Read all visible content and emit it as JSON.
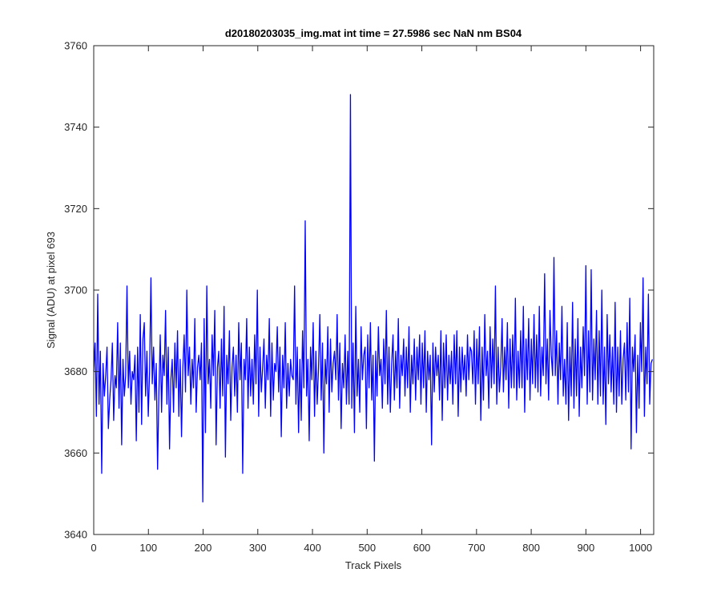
{
  "chart_data": {
    "type": "line",
    "title": "d20180203035_img.mat int time = 27.5986 sec  NaN nm BS04",
    "xlabel": "Track Pixels",
    "ylabel": "Signal (ADU) at pixel 693",
    "xlim": [
      0,
      1024
    ],
    "ylim": [
      3640,
      3760
    ],
    "xticks": [
      0,
      100,
      200,
      300,
      400,
      500,
      600,
      700,
      800,
      900,
      1000
    ],
    "yticks": [
      3640,
      3660,
      3680,
      3700,
      3720,
      3740,
      3760
    ],
    "xtick_labels": [
      "0",
      "100",
      "200",
      "300",
      "400",
      "500",
      "600",
      "700",
      "800",
      "900",
      "1000"
    ],
    "ytick_labels": [
      "3640",
      "3660",
      "3680",
      "3700",
      "3720",
      "3740",
      "3760"
    ],
    "grid": false,
    "legend": "none",
    "line_color": "#0000ff",
    "series": [
      {
        "values": [
          3680,
          3687,
          3669,
          3699,
          3672,
          3685,
          3655,
          3682,
          3674,
          3679,
          3686,
          3666,
          3673,
          3678,
          3687,
          3668,
          3679,
          3676,
          3692,
          3671,
          3687,
          3662,
          3683,
          3674,
          3679,
          3701,
          3676,
          3685,
          3672,
          3680,
          3678,
          3684,
          3663,
          3686,
          3670,
          3694,
          3667,
          3688,
          3692,
          3674,
          3685,
          3669,
          3680,
          3703,
          3677,
          3686,
          3673,
          3682,
          3656,
          3675,
          3689,
          3670,
          3684,
          3679,
          3695,
          3672,
          3686,
          3661,
          3678,
          3683,
          3670,
          3687,
          3676,
          3690,
          3669,
          3683,
          3664,
          3681,
          3689,
          3675,
          3700,
          3679,
          3686,
          3672,
          3683,
          3676,
          3693,
          3670,
          3681,
          3684,
          3678,
          3687,
          3648,
          3693,
          3665,
          3701,
          3677,
          3683,
          3671,
          3689,
          3679,
          3695,
          3662,
          3681,
          3685,
          3671,
          3688,
          3674,
          3696,
          3659,
          3684,
          3677,
          3690,
          3668,
          3681,
          3686,
          3674,
          3684,
          3670,
          3692,
          3678,
          3687,
          3655,
          3683,
          3678,
          3693,
          3671,
          3686,
          3674,
          3683,
          3672,
          3689,
          3677,
          3700,
          3669,
          3686,
          3675,
          3681,
          3688,
          3671,
          3684,
          3678,
          3693,
          3669,
          3687,
          3673,
          3682,
          3680,
          3691,
          3675,
          3686,
          3664,
          3684,
          3676,
          3692,
          3671,
          3682,
          3674,
          3683,
          3679,
          3678,
          3701,
          3672,
          3686,
          3665,
          3683,
          3668,
          3690,
          3676,
          3717,
          3674,
          3683,
          3663,
          3686,
          3678,
          3692,
          3669,
          3685,
          3672,
          3681,
          3694,
          3673,
          3687,
          3660,
          3683,
          3677,
          3691,
          3670,
          3688,
          3675,
          3682,
          3685,
          3678,
          3694,
          3673,
          3687,
          3666,
          3682,
          3676,
          3689,
          3672,
          3685,
          3672,
          3748,
          3671,
          3687,
          3665,
          3696,
          3674,
          3683,
          3670,
          3691,
          3678,
          3684,
          3686,
          3666,
          3689,
          3676,
          3692,
          3673,
          3684,
          3658,
          3685,
          3674,
          3691,
          3679,
          3683,
          3671,
          3688,
          3677,
          3695,
          3672,
          3686,
          3670,
          3682,
          3689,
          3673,
          3685,
          3676,
          3693,
          3671,
          3684,
          3679,
          3688,
          3674,
          3686,
          3676,
          3691,
          3670,
          3684,
          3677,
          3688,
          3673,
          3686,
          3678,
          3689,
          3672,
          3687,
          3676,
          3690,
          3670,
          3685,
          3678,
          3684,
          3662,
          3687,
          3675,
          3686,
          3679,
          3684,
          3673,
          3690,
          3668,
          3687,
          3676,
          3689,
          3673,
          3684,
          3677,
          3685,
          3672,
          3689,
          3677,
          3690,
          3669,
          3686,
          3675,
          3686,
          3678,
          3684,
          3674,
          3689,
          3678,
          3686,
          3685,
          3677,
          3690,
          3672,
          3688,
          3677,
          3691,
          3668,
          3686,
          3673,
          3694,
          3679,
          3685,
          3671,
          3691,
          3676,
          3688,
          3677,
          3701,
          3672,
          3686,
          3675,
          3681,
          3693,
          3675,
          3686,
          3678,
          3692,
          3671,
          3688,
          3676,
          3689,
          3676,
          3698,
          3673,
          3685,
          3676,
          3690,
          3676,
          3696,
          3670,
          3688,
          3678,
          3693,
          3673,
          3688,
          3677,
          3694,
          3676,
          3689,
          3675,
          3696,
          3674,
          3686,
          3679,
          3704,
          3677,
          3688,
          3673,
          3695,
          3684,
          3679,
          3708,
          3679,
          3690,
          3672,
          3687,
          3678,
          3696,
          3674,
          3683,
          3672,
          3692,
          3668,
          3686,
          3674,
          3697,
          3671,
          3688,
          3674,
          3693,
          3669,
          3686,
          3676,
          3691,
          3679,
          3706,
          3672,
          3690,
          3675,
          3705,
          3673,
          3688,
          3678,
          3695,
          3672,
          3690,
          3674,
          3700,
          3672,
          3686,
          3667,
          3694,
          3677,
          3689,
          3675,
          3686,
          3672,
          3697,
          3670,
          3686,
          3674,
          3690,
          3672,
          3683,
          3687,
          3673,
          3692,
          3675,
          3698,
          3661,
          3686,
          3680,
          3689,
          3665,
          3684,
          3671,
          3692,
          3680,
          3703,
          3669,
          3686,
          3677,
          3699,
          3672,
          3682,
          3683
        ]
      }
    ]
  }
}
